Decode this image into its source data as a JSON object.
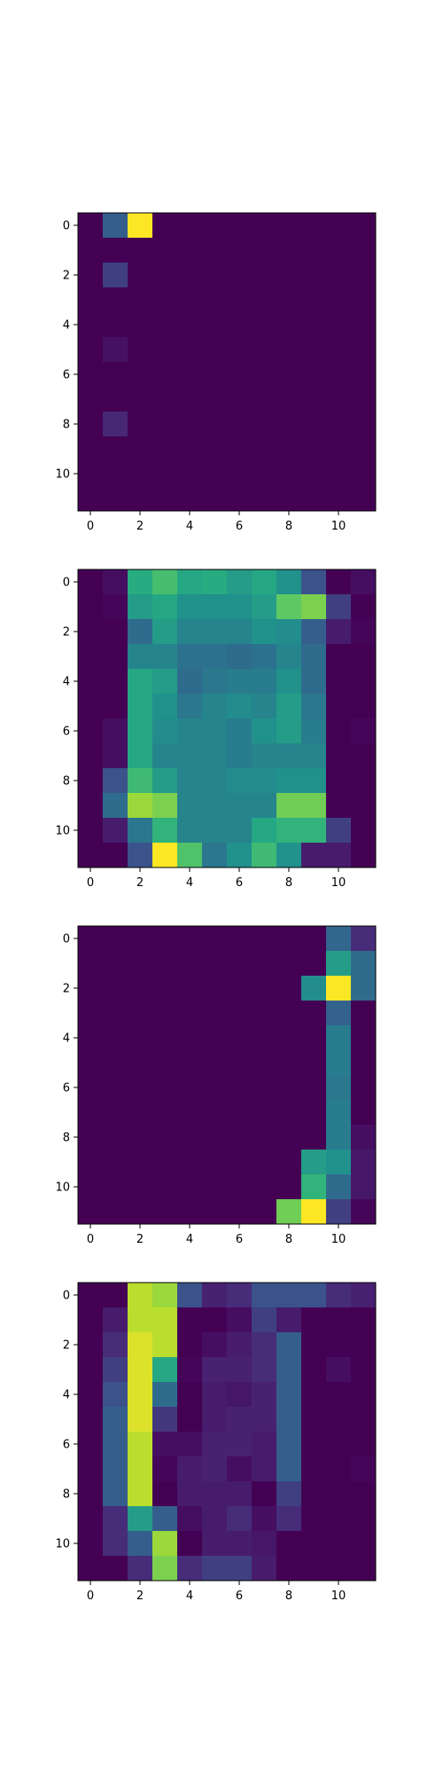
{
  "chart_data": [
    {
      "type": "heatmap",
      "title": "",
      "xlabel": "",
      "ylabel": "",
      "xlim": [
        -0.5,
        11.5
      ],
      "ylim": [
        11.5,
        -0.5
      ],
      "xticks": [
        "0",
        "2",
        "4",
        "6",
        "8",
        "10"
      ],
      "yticks": [
        "0",
        "2",
        "4",
        "6",
        "8",
        "10"
      ],
      "colormap": "viridis",
      "vmin": 0,
      "vmax": 1,
      "grid": false,
      "values": [
        [
          0.0,
          0.3,
          1.0,
          0.0,
          0.0,
          0.0,
          0.0,
          0.0,
          0.0,
          0.0,
          0.0,
          0.0
        ],
        [
          0.0,
          0.0,
          0.0,
          0.0,
          0.0,
          0.0,
          0.0,
          0.0,
          0.0,
          0.0,
          0.0,
          0.0
        ],
        [
          0.0,
          0.2,
          0.0,
          0.0,
          0.0,
          0.0,
          0.0,
          0.0,
          0.0,
          0.0,
          0.0,
          0.0
        ],
        [
          0.0,
          0.0,
          0.0,
          0.0,
          0.0,
          0.0,
          0.0,
          0.0,
          0.0,
          0.0,
          0.0,
          0.0
        ],
        [
          0.0,
          0.0,
          0.0,
          0.0,
          0.0,
          0.0,
          0.0,
          0.0,
          0.0,
          0.0,
          0.0,
          0.0
        ],
        [
          0.0,
          0.06,
          0.0,
          0.0,
          0.0,
          0.0,
          0.0,
          0.0,
          0.0,
          0.0,
          0.0,
          0.0
        ],
        [
          0.0,
          0.0,
          0.0,
          0.0,
          0.0,
          0.0,
          0.0,
          0.0,
          0.0,
          0.0,
          0.0,
          0.0
        ],
        [
          0.0,
          0.0,
          0.0,
          0.0,
          0.0,
          0.0,
          0.0,
          0.0,
          0.0,
          0.0,
          0.0,
          0.0
        ],
        [
          0.0,
          0.14,
          0.0,
          0.0,
          0.0,
          0.0,
          0.0,
          0.0,
          0.0,
          0.0,
          0.0,
          0.0
        ],
        [
          0.0,
          0.0,
          0.0,
          0.0,
          0.0,
          0.0,
          0.0,
          0.0,
          0.0,
          0.0,
          0.0,
          0.0
        ],
        [
          0.0,
          0.0,
          0.0,
          0.0,
          0.0,
          0.0,
          0.0,
          0.0,
          0.0,
          0.0,
          0.0,
          0.0
        ],
        [
          0.0,
          0.0,
          0.0,
          0.0,
          0.0,
          0.0,
          0.0,
          0.0,
          0.0,
          0.0,
          0.0,
          0.0
        ]
      ]
    },
    {
      "type": "heatmap",
      "title": "",
      "xlabel": "",
      "ylabel": "",
      "xlim": [
        -0.5,
        11.5
      ],
      "ylim": [
        11.5,
        -0.5
      ],
      "xticks": [
        "0",
        "2",
        "4",
        "6",
        "8",
        "10"
      ],
      "yticks": [
        "0",
        "2",
        "4",
        "6",
        "8",
        "10"
      ],
      "colormap": "viridis",
      "vmin": 0,
      "vmax": 1,
      "grid": false,
      "values": [
        [
          0.0,
          0.05,
          0.62,
          0.7,
          0.6,
          0.62,
          0.55,
          0.6,
          0.5,
          0.25,
          0.0,
          0.05
        ],
        [
          0.0,
          0.02,
          0.55,
          0.6,
          0.5,
          0.5,
          0.5,
          0.55,
          0.75,
          0.8,
          0.2,
          0.0
        ],
        [
          0.0,
          0.0,
          0.35,
          0.55,
          0.45,
          0.45,
          0.45,
          0.5,
          0.48,
          0.3,
          0.1,
          0.02
        ],
        [
          0.0,
          0.0,
          0.45,
          0.45,
          0.38,
          0.38,
          0.35,
          0.38,
          0.45,
          0.35,
          0.0,
          0.0
        ],
        [
          0.0,
          0.0,
          0.6,
          0.55,
          0.35,
          0.4,
          0.42,
          0.42,
          0.5,
          0.35,
          0.0,
          0.0
        ],
        [
          0.0,
          0.0,
          0.6,
          0.5,
          0.4,
          0.45,
          0.48,
          0.45,
          0.55,
          0.4,
          0.0,
          0.0
        ],
        [
          0.0,
          0.05,
          0.6,
          0.48,
          0.45,
          0.45,
          0.42,
          0.5,
          0.55,
          0.42,
          0.0,
          0.02
        ],
        [
          0.0,
          0.05,
          0.6,
          0.45,
          0.45,
          0.45,
          0.42,
          0.45,
          0.45,
          0.45,
          0.0,
          0.0
        ],
        [
          0.0,
          0.25,
          0.68,
          0.55,
          0.45,
          0.45,
          0.48,
          0.48,
          0.5,
          0.5,
          0.0,
          0.0
        ],
        [
          0.0,
          0.35,
          0.85,
          0.8,
          0.45,
          0.45,
          0.45,
          0.45,
          0.78,
          0.78,
          0.0,
          0.0
        ],
        [
          0.0,
          0.1,
          0.4,
          0.65,
          0.45,
          0.45,
          0.45,
          0.6,
          0.65,
          0.65,
          0.2,
          0.0
        ],
        [
          0.0,
          0.0,
          0.25,
          1.0,
          0.72,
          0.4,
          0.5,
          0.68,
          0.5,
          0.1,
          0.1,
          0.0
        ]
      ]
    },
    {
      "type": "heatmap",
      "title": "",
      "xlabel": "",
      "ylabel": "",
      "xlim": [
        -0.5,
        11.5
      ],
      "ylim": [
        11.5,
        -0.5
      ],
      "xticks": [
        "0",
        "2",
        "4",
        "6",
        "8",
        "10"
      ],
      "yticks": [
        "0",
        "2",
        "4",
        "6",
        "8",
        "10"
      ],
      "colormap": "viridis",
      "vmin": 0,
      "vmax": 1,
      "grid": false,
      "values": [
        [
          0.0,
          0.0,
          0.0,
          0.0,
          0.0,
          0.0,
          0.0,
          0.0,
          0.0,
          0.0,
          0.33,
          0.15
        ],
        [
          0.0,
          0.0,
          0.0,
          0.0,
          0.0,
          0.0,
          0.0,
          0.0,
          0.0,
          0.0,
          0.55,
          0.35
        ],
        [
          0.0,
          0.0,
          0.0,
          0.0,
          0.0,
          0.0,
          0.0,
          0.0,
          0.0,
          0.48,
          1.0,
          0.35
        ],
        [
          0.0,
          0.0,
          0.0,
          0.0,
          0.0,
          0.0,
          0.0,
          0.0,
          0.0,
          0.0,
          0.32,
          0.0
        ],
        [
          0.0,
          0.0,
          0.0,
          0.0,
          0.0,
          0.0,
          0.0,
          0.0,
          0.0,
          0.0,
          0.42,
          0.0
        ],
        [
          0.0,
          0.0,
          0.0,
          0.0,
          0.0,
          0.0,
          0.0,
          0.0,
          0.0,
          0.0,
          0.42,
          0.0
        ],
        [
          0.0,
          0.0,
          0.0,
          0.0,
          0.0,
          0.0,
          0.0,
          0.0,
          0.0,
          0.0,
          0.4,
          0.0
        ],
        [
          0.0,
          0.0,
          0.0,
          0.0,
          0.0,
          0.0,
          0.0,
          0.0,
          0.0,
          0.0,
          0.42,
          0.0
        ],
        [
          0.0,
          0.0,
          0.0,
          0.0,
          0.0,
          0.0,
          0.0,
          0.0,
          0.0,
          0.0,
          0.42,
          0.05
        ],
        [
          0.0,
          0.0,
          0.0,
          0.0,
          0.0,
          0.0,
          0.0,
          0.0,
          0.0,
          0.55,
          0.5,
          0.08
        ],
        [
          0.0,
          0.0,
          0.0,
          0.0,
          0.0,
          0.0,
          0.0,
          0.0,
          0.0,
          0.65,
          0.35,
          0.08
        ],
        [
          0.0,
          0.0,
          0.0,
          0.0,
          0.0,
          0.0,
          0.0,
          0.0,
          0.78,
          1.0,
          0.2,
          0.02
        ]
      ]
    },
    {
      "type": "heatmap",
      "title": "",
      "xlabel": "",
      "ylabel": "",
      "xlim": [
        -0.5,
        11.5
      ],
      "ylim": [
        11.5,
        -0.5
      ],
      "xticks": [
        "0",
        "2",
        "4",
        "6",
        "8",
        "10"
      ],
      "yticks": [
        "0",
        "2",
        "4",
        "6",
        "8",
        "10"
      ],
      "colormap": "viridis",
      "vmin": 0,
      "vmax": 1,
      "grid": false,
      "values": [
        [
          0.0,
          0.0,
          0.9,
          0.85,
          0.25,
          0.12,
          0.15,
          0.25,
          0.25,
          0.25,
          0.15,
          0.12
        ],
        [
          0.0,
          0.1,
          0.9,
          0.9,
          0.0,
          0.0,
          0.05,
          0.2,
          0.1,
          0.0,
          0.0,
          0.0
        ],
        [
          0.0,
          0.15,
          0.95,
          0.9,
          0.0,
          0.05,
          0.1,
          0.15,
          0.3,
          0.0,
          0.0,
          0.0
        ],
        [
          0.0,
          0.2,
          0.95,
          0.6,
          0.02,
          0.12,
          0.12,
          0.15,
          0.3,
          0.0,
          0.05,
          0.0
        ],
        [
          0.0,
          0.25,
          0.95,
          0.35,
          0.0,
          0.1,
          0.08,
          0.12,
          0.3,
          0.0,
          0.0,
          0.0
        ],
        [
          0.0,
          0.3,
          0.95,
          0.18,
          0.0,
          0.1,
          0.12,
          0.12,
          0.3,
          0.0,
          0.0,
          0.0
        ],
        [
          0.0,
          0.3,
          0.9,
          0.05,
          0.05,
          0.12,
          0.12,
          0.1,
          0.3,
          0.0,
          0.0,
          0.0
        ],
        [
          0.0,
          0.3,
          0.9,
          0.02,
          0.1,
          0.12,
          0.05,
          0.1,
          0.3,
          0.0,
          0.0,
          0.02
        ],
        [
          0.0,
          0.3,
          0.9,
          0.0,
          0.1,
          0.1,
          0.1,
          0.0,
          0.2,
          0.0,
          0.0,
          0.0
        ],
        [
          0.0,
          0.15,
          0.55,
          0.3,
          0.05,
          0.1,
          0.15,
          0.05,
          0.15,
          0.0,
          0.0,
          0.0
        ],
        [
          0.0,
          0.15,
          0.3,
          0.85,
          0.0,
          0.1,
          0.1,
          0.08,
          0.0,
          0.0,
          0.0,
          0.0
        ],
        [
          0.0,
          0.0,
          0.15,
          0.8,
          0.15,
          0.2,
          0.2,
          0.1,
          0.0,
          0.0,
          0.0,
          0.0
        ]
      ]
    }
  ]
}
